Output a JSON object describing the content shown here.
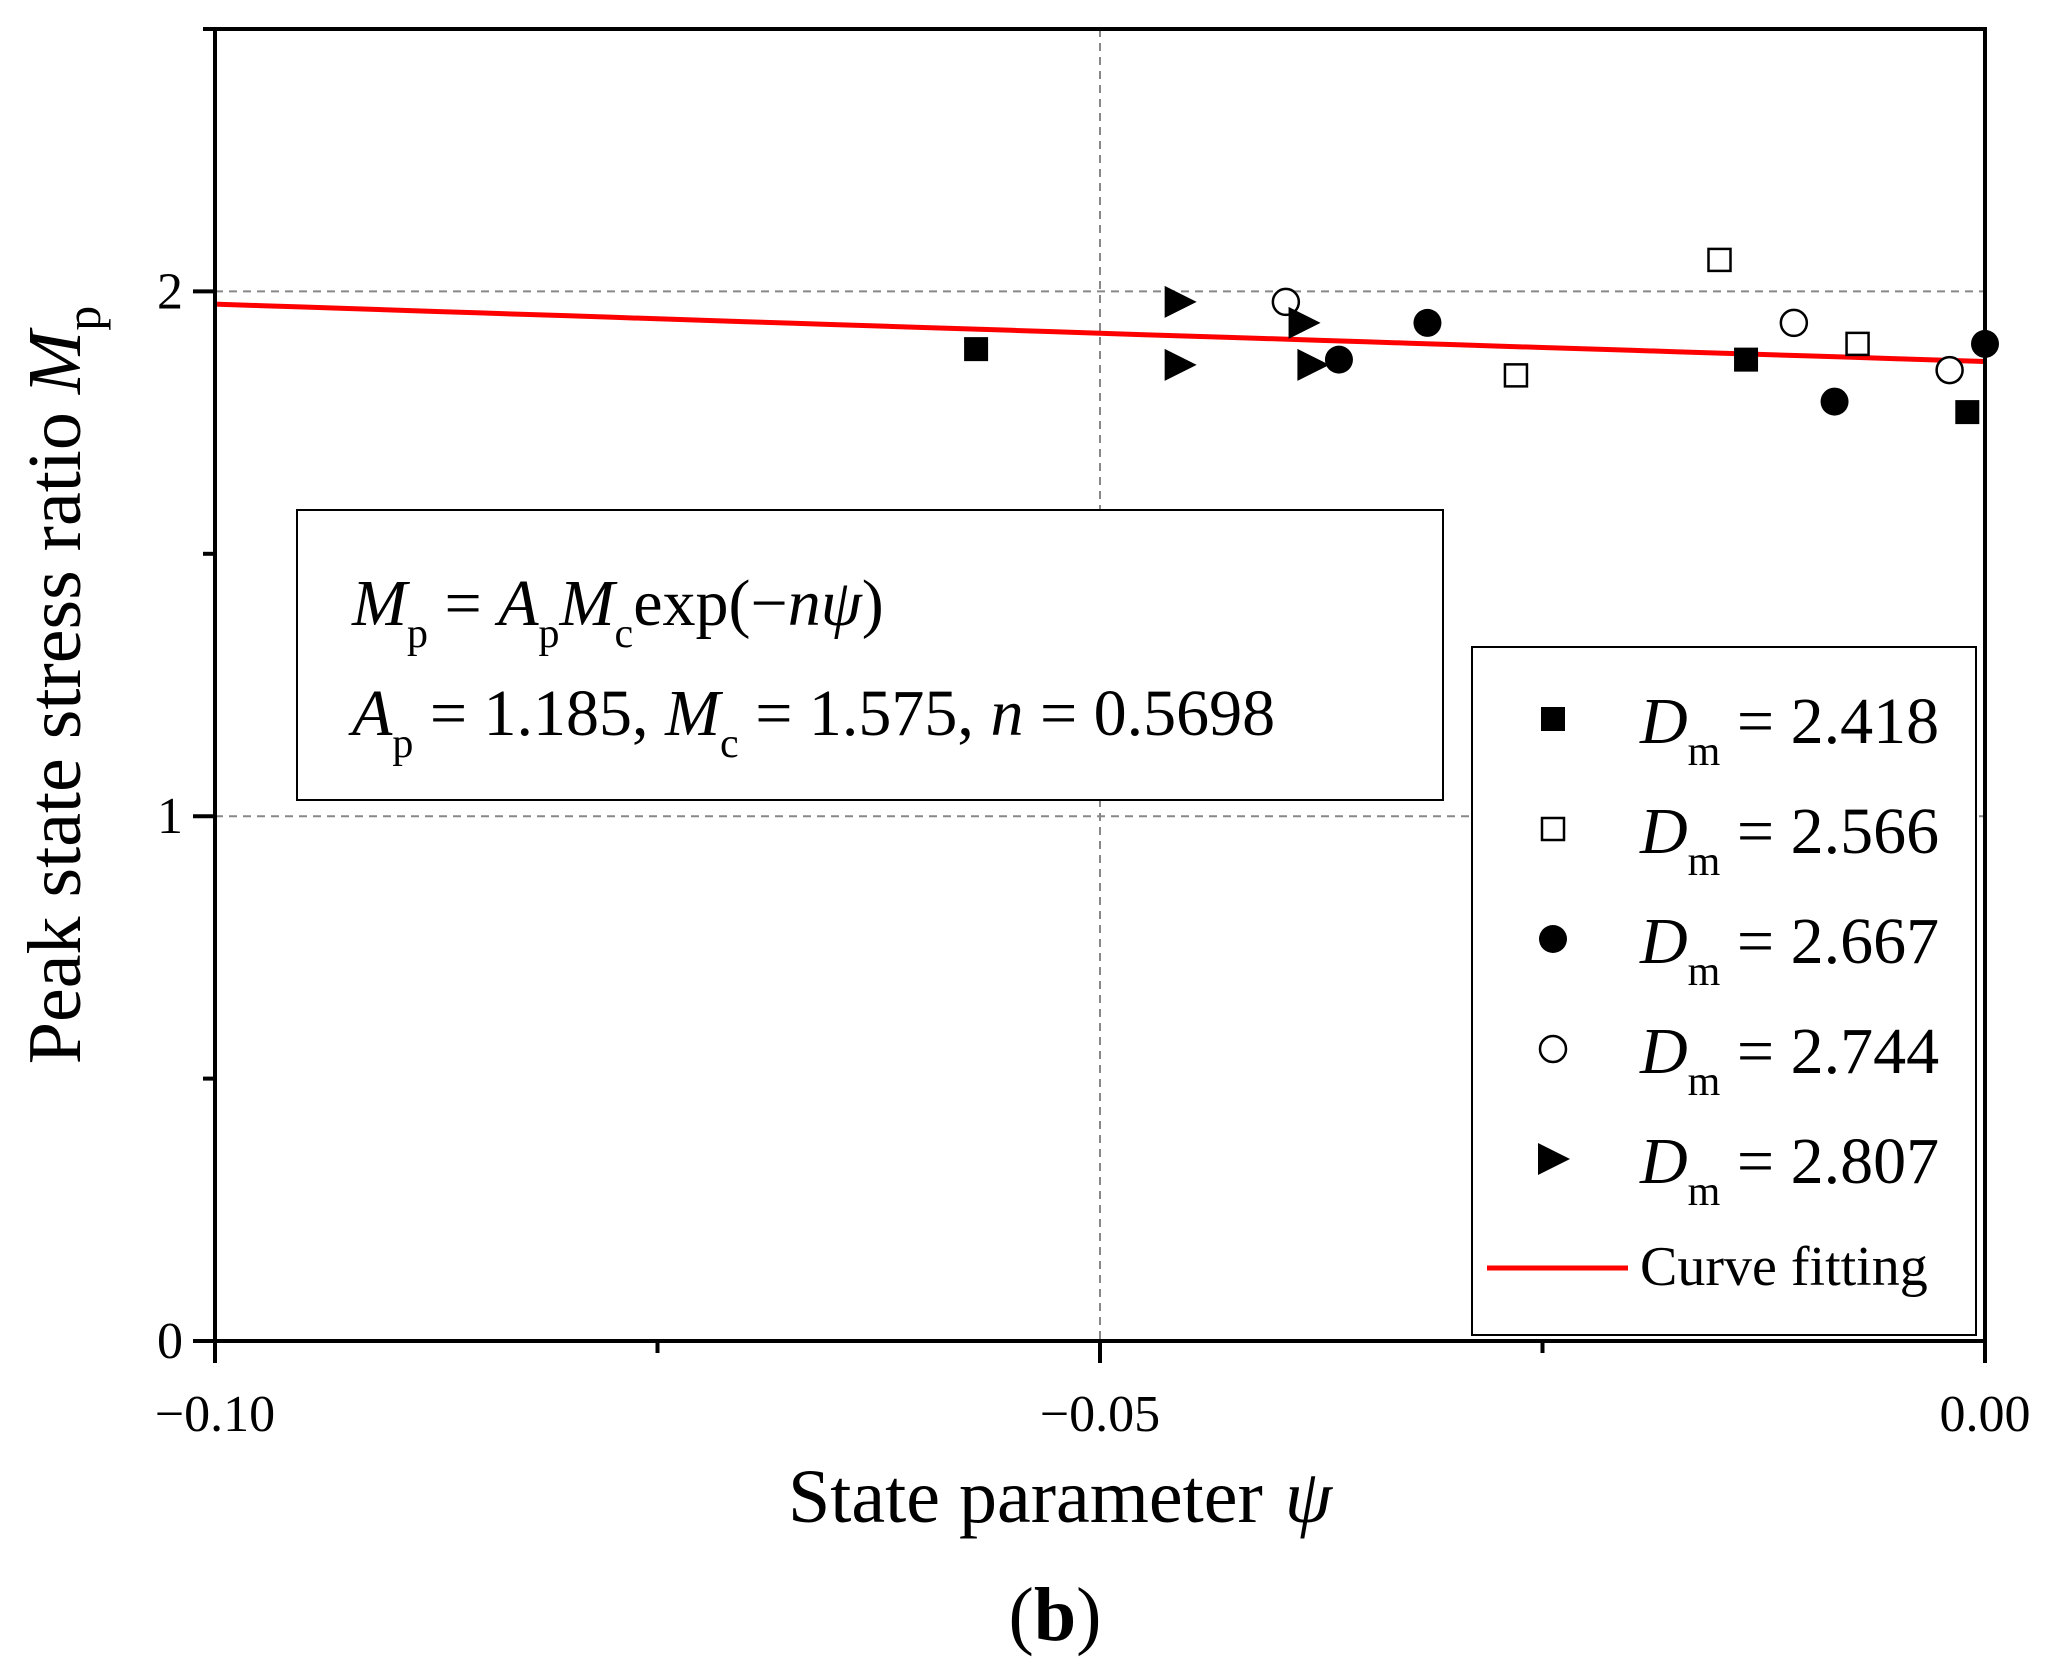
{
  "chart_data": {
    "type": "scatter",
    "panel_label": "b",
    "xlabel": "State parameter",
    "xlabel_symbol": "ψ",
    "ylabel": "Peak state stress ratio",
    "ylabel_symbol": "M",
    "ylabel_sub": "p",
    "xlim": [
      -0.1,
      0.0
    ],
    "ylim": [
      0,
      2.5
    ],
    "xticks": [
      -0.1,
      -0.05,
      0.0
    ],
    "xtick_labels": [
      "−0.10",
      "−0.05",
      "0.00"
    ],
    "yticks": [
      0,
      1,
      2
    ],
    "ytick_labels": [
      "0",
      "1",
      "2"
    ],
    "grid": true,
    "series": [
      {
        "name": "D_m = 2.418",
        "value_label": "2.418",
        "marker": "square-filled",
        "x": [
          -0.057,
          -0.0135,
          -0.001
        ],
        "y": [
          1.89,
          1.87,
          1.77
        ]
      },
      {
        "name": "D_m = 2.566",
        "value_label": "2.566",
        "marker": "square-open",
        "x": [
          -0.0265,
          -0.015,
          -0.0072
        ],
        "y": [
          1.84,
          2.06,
          1.9
        ]
      },
      {
        "name": "D_m = 2.667",
        "value_label": "2.667",
        "marker": "circle-filled",
        "x": [
          -0.0365,
          -0.0315,
          -0.0085,
          0.0
        ],
        "y": [
          1.87,
          1.94,
          1.79,
          1.9
        ]
      },
      {
        "name": "D_m = 2.744",
        "value_label": "2.744",
        "marker": "circle-open",
        "x": [
          -0.0395,
          -0.0108,
          -0.002
        ],
        "y": [
          1.98,
          1.94,
          1.85
        ]
      },
      {
        "name": "D_m = 2.807",
        "value_label": "2.807",
        "marker": "triangle-right-filled",
        "x": [
          -0.0455,
          -0.0455,
          -0.0385,
          -0.038
        ],
        "y": [
          1.98,
          1.86,
          1.94,
          1.86
        ]
      }
    ],
    "fit": {
      "name": "Curve fitting",
      "color": "#ff0000",
      "Ap": 1.185,
      "Mc": 1.575,
      "n": 0.5698,
      "x_range": [
        -0.1,
        0.0
      ]
    },
    "annotation": {
      "line1_parts": [
        "M",
        "p",
        " = ",
        "A",
        "p",
        "M",
        "c",
        "exp(−",
        "n",
        "ψ",
        ")"
      ],
      "line2_parts": [
        "A",
        "p",
        " = 1.185, ",
        "M",
        "c",
        " = 1.575, ",
        "n",
        " = 0.5698"
      ]
    },
    "legend_symbol": "D",
    "legend_sub": "m",
    "legend_position": "bottom-right"
  }
}
